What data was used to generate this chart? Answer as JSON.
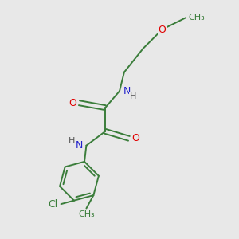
{
  "background_color": "#e8e8e8",
  "bond_color": "#3a7d3a",
  "bond_width": 1.4,
  "atom_colors": {
    "O": "#e00000",
    "N": "#2020cc",
    "Cl": "#3a7d3a",
    "C": "#3a7d3a",
    "H": "#555555"
  },
  "figsize": [
    3.0,
    3.0
  ],
  "dpi": 100
}
